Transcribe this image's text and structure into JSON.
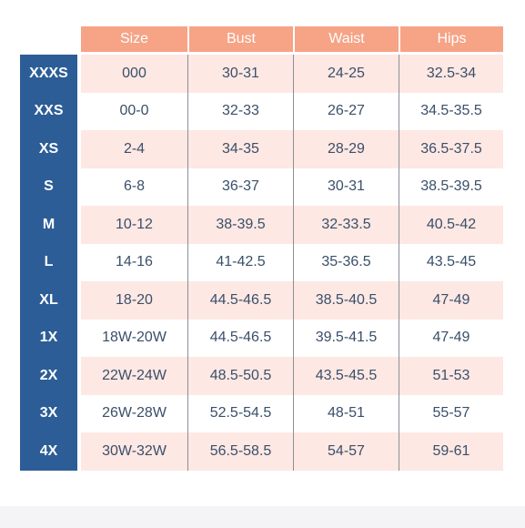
{
  "columns": [
    "Size",
    "Bust",
    "Waist",
    "Hips"
  ],
  "rows": [
    {
      "label": "XXXS",
      "size": "000",
      "bust": "30-31",
      "waist": "24-25",
      "hips": "32.5-34"
    },
    {
      "label": "XXS",
      "size": "00-0",
      "bust": "32-33",
      "waist": "26-27",
      "hips": "34.5-35.5"
    },
    {
      "label": "XS",
      "size": "2-4",
      "bust": "34-35",
      "waist": "28-29",
      "hips": "36.5-37.5"
    },
    {
      "label": "S",
      "size": "6-8",
      "bust": "36-37",
      "waist": "30-31",
      "hips": "38.5-39.5"
    },
    {
      "label": "M",
      "size": "10-12",
      "bust": "38-39.5",
      "waist": "32-33.5",
      "hips": "40.5-42"
    },
    {
      "label": "L",
      "size": "14-16",
      "bust": "41-42.5",
      "waist": "35-36.5",
      "hips": "43.5-45"
    },
    {
      "label": "XL",
      "size": "18-20",
      "bust": "44.5-46.5",
      "waist": "38.5-40.5",
      "hips": "47-49"
    },
    {
      "label": "1X",
      "size": "18W-20W",
      "bust": "44.5-46.5",
      "waist": "39.5-41.5",
      "hips": "47-49"
    },
    {
      "label": "2X",
      "size": "22W-24W",
      "bust": "48.5-50.5",
      "waist": "43.5-45.5",
      "hips": "51-53"
    },
    {
      "label": "3X",
      "size": "26W-28W",
      "bust": "52.5-54.5",
      "waist": "48-51",
      "hips": "55-57"
    },
    {
      "label": "4X",
      "size": "30W-32W",
      "bust": "56.5-58.5",
      "waist": "54-57",
      "hips": "59-61"
    }
  ],
  "colors": {
    "header": "#f6a386",
    "label_column": "#2c5d97",
    "stripe": "#fde8e3",
    "cell_text": "#3a4f6a"
  }
}
